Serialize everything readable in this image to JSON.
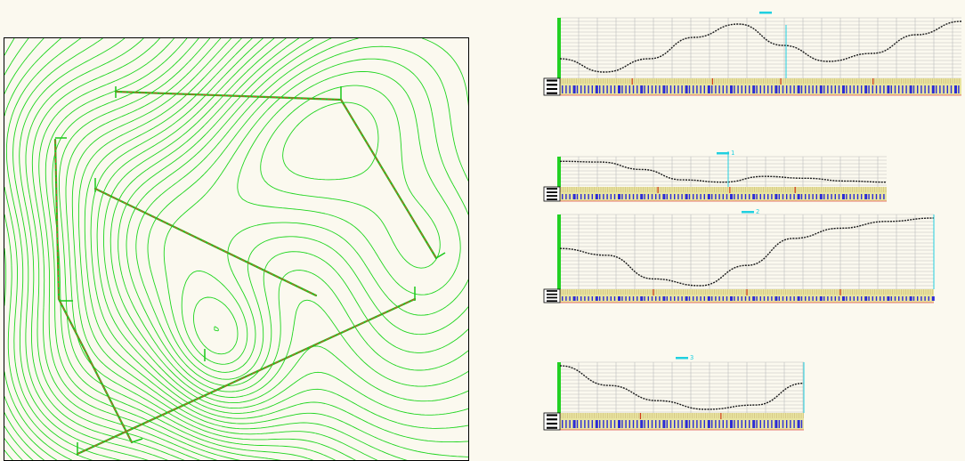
{
  "scene": {
    "background": "#fbf9ef",
    "contour_color": "#1fd51f",
    "route_color": "#c8552e",
    "guide_color": "#19c819",
    "profile_grid_color": "#bdbdbd",
    "profile_curve_color": "#1a1a1a",
    "profile_accent_color": "#20d0e0",
    "profile_band_color": "#e8e4a0",
    "profile_tick_color": "#2b2bd6",
    "profile_marker_color": "#d23a1a",
    "legend_color": "#000000",
    "icons": [
      "contour-map",
      "route-polyline",
      "station-tick",
      "profile-grid",
      "elevation-curve",
      "station-band",
      "profile-legend"
    ]
  },
  "profiles": [
    {
      "id": "profile-1",
      "tag": "",
      "elevation_curve": [
        0.7,
        0.95,
        0.7,
        0.3,
        0.05,
        0.45,
        0.75,
        0.6,
        0.25,
        0.0
      ],
      "markers": [
        0.18,
        0.38,
        0.55,
        0.78
      ]
    },
    {
      "id": "profile-2",
      "tag": "1",
      "elevation_curve": [
        0.05,
        0.08,
        0.4,
        0.85,
        0.95,
        0.7,
        0.78,
        0.9,
        0.95
      ],
      "markers": [
        0.3,
        0.52,
        0.72
      ]
    },
    {
      "id": "profile-3",
      "tag": "2",
      "elevation_curve": [
        0.45,
        0.55,
        0.9,
        1.0,
        0.7,
        0.3,
        0.15,
        0.05,
        0.0
      ],
      "markers": [
        0.25,
        0.5,
        0.75
      ]
    },
    {
      "id": "profile-4",
      "tag": "3",
      "elevation_curve": [
        0.0,
        0.45,
        0.8,
        1.0,
        0.9,
        0.4
      ],
      "markers": [
        0.33,
        0.66
      ]
    }
  ]
}
